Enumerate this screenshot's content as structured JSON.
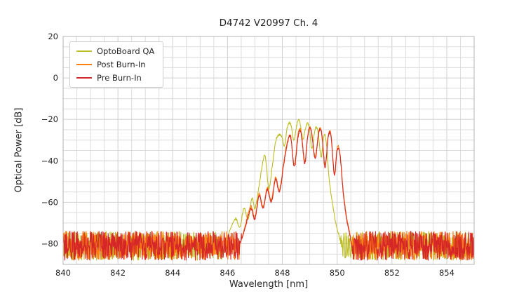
{
  "chart_data": {
    "type": "line",
    "title": "D4742 V20997 Ch. 4",
    "xlabel": "Wavelength [nm]",
    "ylabel": "Optical Power [dB]",
    "xlim": [
      840,
      855
    ],
    "ylim": [
      -90,
      20
    ],
    "xticks": [
      840,
      842,
      844,
      846,
      848,
      850,
      852,
      854
    ],
    "yticks": [
      20,
      0,
      -20,
      -40,
      -60,
      -80
    ],
    "minor_x_step": 0.5,
    "minor_y_step": 5,
    "grid": true,
    "legend_position": "upper left",
    "grid_color": "#dcdcdc",
    "major_grid_color": "#cfcfcf",
    "spine_color": "#b5b5b5",
    "noise_floor": {
      "min": -88,
      "max": -74
    },
    "series": [
      {
        "name": "OptoBoard QA",
        "color": "#bcbd22",
        "band": [
          846.0,
          850.2
        ],
        "peak_wavelength_nm": 848.6,
        "peak_power_db": -21,
        "envelope": [
          [
            845.9,
            -80
          ],
          [
            846.1,
            -73
          ],
          [
            846.3,
            -68
          ],
          [
            846.45,
            -72
          ],
          [
            846.6,
            -63
          ],
          [
            846.75,
            -68
          ],
          [
            846.9,
            -58
          ],
          [
            847.0,
            -63
          ],
          [
            847.15,
            -52
          ],
          [
            847.3,
            -40
          ],
          [
            847.38,
            -38
          ],
          [
            847.5,
            -53
          ],
          [
            847.62,
            -44
          ],
          [
            847.75,
            -31
          ],
          [
            847.88,
            -27.5
          ],
          [
            848.0,
            -29
          ],
          [
            848.08,
            -33
          ],
          [
            848.18,
            -24
          ],
          [
            848.3,
            -22
          ],
          [
            848.42,
            -30
          ],
          [
            848.55,
            -21.5
          ],
          [
            848.63,
            -21
          ],
          [
            848.75,
            -29.5
          ],
          [
            848.88,
            -22.5
          ],
          [
            848.97,
            -23.5
          ],
          [
            849.08,
            -34
          ],
          [
            849.2,
            -24.5
          ],
          [
            849.3,
            -26
          ],
          [
            849.42,
            -38
          ],
          [
            849.52,
            -27.5
          ],
          [
            849.6,
            -31
          ],
          [
            849.7,
            -48
          ],
          [
            849.82,
            -60
          ],
          [
            849.95,
            -70
          ],
          [
            850.1,
            -78
          ],
          [
            850.2,
            -84
          ]
        ]
      },
      {
        "name": "Post Burn-In",
        "color": "#ff7f0e",
        "band": [
          846.45,
          850.55
        ],
        "peak_wavelength_nm": 849.05,
        "peak_power_db": -25,
        "envelope": [
          [
            846.45,
            -80
          ],
          [
            846.65,
            -71
          ],
          [
            846.85,
            -62
          ],
          [
            847.0,
            -67
          ],
          [
            847.15,
            -56
          ],
          [
            847.3,
            -62
          ],
          [
            847.45,
            -53
          ],
          [
            847.6,
            -59
          ],
          [
            847.75,
            -48
          ],
          [
            847.9,
            -54
          ],
          [
            848.05,
            -41
          ],
          [
            848.18,
            -31
          ],
          [
            848.3,
            -28
          ],
          [
            848.44,
            -42
          ],
          [
            848.58,
            -27
          ],
          [
            848.68,
            -26
          ],
          [
            848.82,
            -40
          ],
          [
            848.95,
            -25.5
          ],
          [
            849.05,
            -25
          ],
          [
            849.2,
            -38
          ],
          [
            849.33,
            -26
          ],
          [
            849.43,
            -26
          ],
          [
            849.56,
            -42
          ],
          [
            849.68,
            -27.5
          ],
          [
            849.78,
            -28
          ],
          [
            849.9,
            -46
          ],
          [
            850.0,
            -34
          ],
          [
            850.1,
            -36
          ],
          [
            850.22,
            -54
          ],
          [
            850.32,
            -65
          ],
          [
            850.45,
            -74
          ],
          [
            850.55,
            -81
          ]
        ]
      },
      {
        "name": "Pre Burn-In",
        "color": "#d62728",
        "band": [
          846.45,
          850.55
        ],
        "peak_wavelength_nm": 849.05,
        "peak_power_db": -25.5,
        "envelope": [
          [
            846.45,
            -80
          ],
          [
            846.65,
            -72
          ],
          [
            846.85,
            -63
          ],
          [
            847.0,
            -68
          ],
          [
            847.15,
            -57
          ],
          [
            847.3,
            -63
          ],
          [
            847.45,
            -54
          ],
          [
            847.6,
            -60
          ],
          [
            847.75,
            -49
          ],
          [
            847.9,
            -55
          ],
          [
            848.05,
            -42
          ],
          [
            848.18,
            -32
          ],
          [
            848.3,
            -28.5
          ],
          [
            848.44,
            -43
          ],
          [
            848.58,
            -28
          ],
          [
            848.68,
            -26.5
          ],
          [
            848.82,
            -41
          ],
          [
            848.95,
            -26
          ],
          [
            849.05,
            -25.5
          ],
          [
            849.2,
            -39
          ],
          [
            849.33,
            -26.5
          ],
          [
            849.43,
            -26.5
          ],
          [
            849.56,
            -43
          ],
          [
            849.68,
            -28
          ],
          [
            849.78,
            -28.5
          ],
          [
            849.9,
            -47
          ],
          [
            850.0,
            -35
          ],
          [
            850.1,
            -37
          ],
          [
            850.22,
            -55
          ],
          [
            850.32,
            -66
          ],
          [
            850.45,
            -75
          ],
          [
            850.55,
            -82
          ]
        ]
      }
    ]
  }
}
